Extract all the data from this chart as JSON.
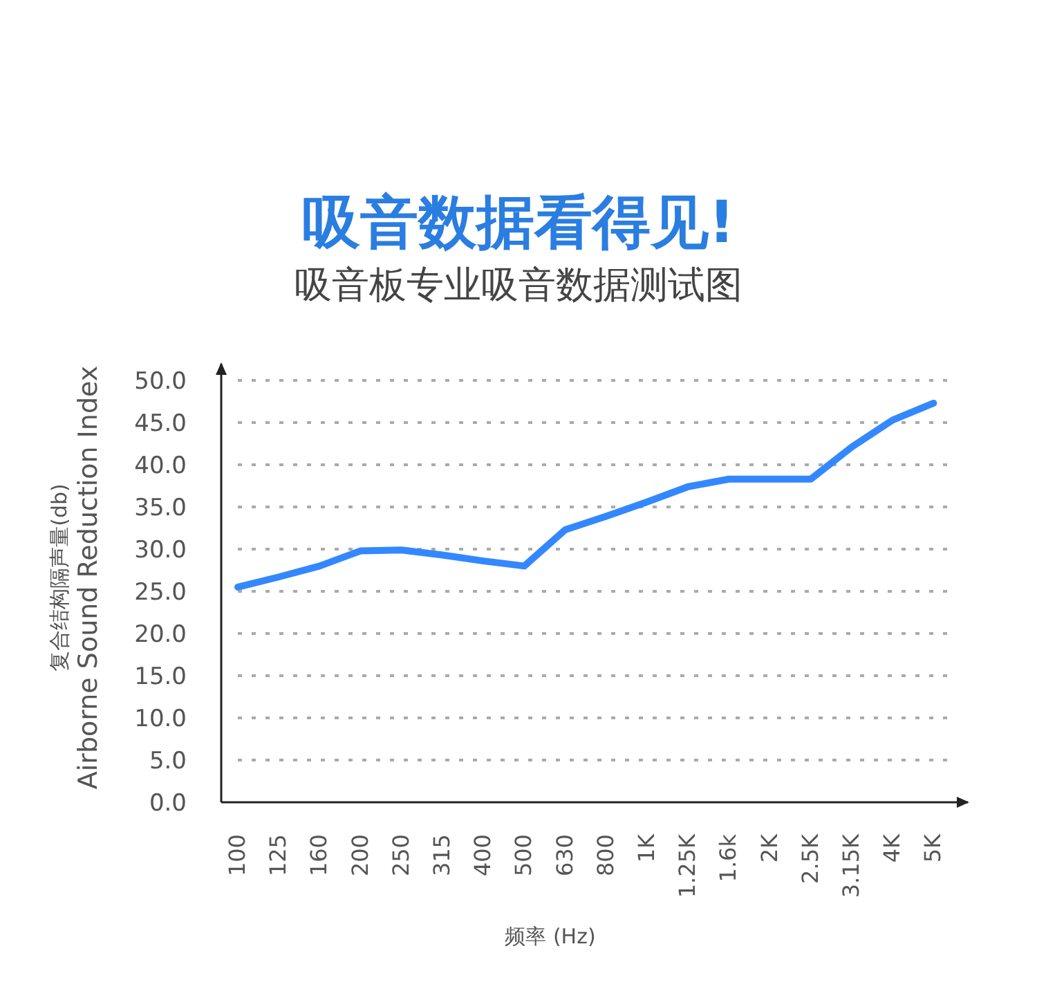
{
  "chart_data": {
    "type": "line",
    "title": "吸音数据看得见!",
    "subtitle": "吸音板专业吸音数据测试图",
    "xlabel": "频率 (Hz)",
    "ylabel": "复合结构隔声量(db)\nAirborne Sound Reduction Index",
    "categories": [
      "100",
      "125",
      "160",
      "200",
      "250",
      "315",
      "400",
      "500",
      "630",
      "800",
      "1K",
      "1.25K",
      "1.6k",
      "2K",
      "2.5K",
      "3.15K",
      "4K",
      "5K"
    ],
    "series": [
      {
        "color": "#3388ff",
        "values": [
          25.5,
          26.7,
          28.0,
          29.8,
          29.9,
          29.3,
          28.6,
          28.0,
          32.3,
          33.9,
          35.6,
          37.4,
          38.3,
          38.3,
          38.3,
          42.1,
          45.3,
          47.3
        ]
      }
    ],
    "ylim": [
      0,
      50
    ],
    "yticks": [
      {
        "value": 0,
        "label": "0.0"
      },
      {
        "value": 5,
        "label": "5.0"
      },
      {
        "value": 10,
        "label": "10.0"
      },
      {
        "value": 15,
        "label": "15.0"
      },
      {
        "value": 20,
        "label": "20.0"
      },
      {
        "value": 25,
        "label": "25.0"
      },
      {
        "value": 30,
        "label": "30.0"
      },
      {
        "value": 35,
        "label": "35.0"
      },
      {
        "value": 40,
        "label": "40.0"
      },
      {
        "value": 45,
        "label": "45.0"
      },
      {
        "value": 50,
        "label": "50.0"
      }
    ],
    "grid": "y"
  }
}
